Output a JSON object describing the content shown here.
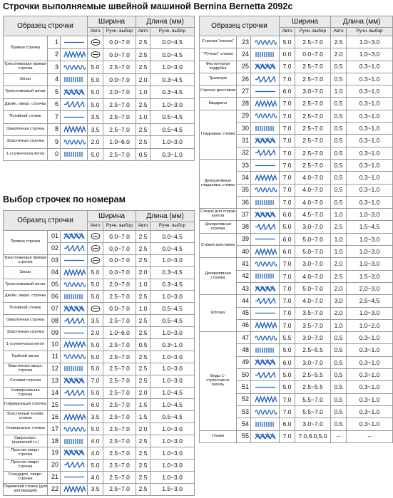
{
  "title": "Строчки выполняемые швейной машиной Bernina Bernetta 2092c",
  "section_title": "Выбор строчек по номерам",
  "header": {
    "pattern": "Образец строчки",
    "width": "Ширина",
    "length": "Длина (мм)",
    "auto": "Авто",
    "manual": "Ручн. выбор"
  },
  "tables": [
    {
      "groups": [
        {
          "name": "Прямая строчка",
          "rows": [
            {
              "no": "1",
              "width_manual": "0.0~7.0",
              "length_auto": "2.5",
              "length_manual": "0.0~4.5"
            },
            {
              "no": "2",
              "width_manual": "0.0~7.0",
              "length_auto": "2.5",
              "length_manual": "0.0~4.5"
            }
          ]
        },
        {
          "name": "Трехстежковая прямая строчка",
          "rows": [
            {
              "no": "3",
              "width_auto": "5.0",
              "width_manual": "2.5~7.0",
              "length_auto": "2.5",
              "length_manual": "1.0~3.0"
            }
          ]
        },
        {
          "name": "Зигзаг",
          "rows": [
            {
              "no": "4",
              "width_auto": "5.0",
              "width_manual": "0.0~7.0",
              "length_auto": "2.0",
              "length_manual": "0.3~4.5"
            }
          ]
        },
        {
          "name": "Трехстежковый зигзаг",
          "rows": [
            {
              "no": "5",
              "width_auto": "5.0",
              "width_manual": "2.0~7.0",
              "length_auto": "1.0",
              "length_manual": "0.3~4.5"
            }
          ]
        },
        {
          "name": "Двойн. оверл. строчка",
          "rows": [
            {
              "no": "6",
              "width_auto": "5.0",
              "width_manual": "2.5~7.0",
              "length_auto": "2.5",
              "length_manual": "1.0~3.0"
            }
          ]
        },
        {
          "name": "Потайной стежок",
          "rows": [
            {
              "no": "7",
              "width_auto": "3.5",
              "width_manual": "2.5~7.0",
              "length_auto": "1.0",
              "length_manual": "0.5~4.5"
            }
          ]
        },
        {
          "name": "Оверлочная строчка",
          "rows": [
            {
              "no": "8",
              "width_auto": "3.5",
              "width_manual": "2.5~7.0",
              "length_auto": "2.5",
              "length_manual": "0.5~4.5"
            }
          ]
        },
        {
          "name": "Эластичная строчка",
          "rows": [
            {
              "no": "9",
              "width_auto": "2.0",
              "width_manual": "1.0~6.0",
              "length_auto": "2.5",
              "length_manual": "1.0~3.0"
            }
          ]
        },
        {
          "name": "1-ступенчатая петля",
          "rows": [
            {
              "no": "0",
              "width_auto": "5.0",
              "width_manual": "2.5~7.0",
              "length_auto": "0.5",
              "length_manual": "0.3~1.0"
            }
          ]
        }
      ]
    },
    {
      "groups": [
        {
          "name": "Прямая строчка",
          "rows": [
            {
              "no": "01",
              "width_manual": "0.0~7.0",
              "length_auto": "2.5",
              "length_manual": "0.0~4.5"
            },
            {
              "no": "02",
              "width_manual": "0.0~7.0",
              "length_auto": "2.5",
              "length_manual": "0.0~4.5"
            }
          ]
        },
        {
          "name": "Трехстежковая прямая строчка",
          "rows": [
            {
              "no": "03",
              "width_manual": "0.0~7.0",
              "length_auto": "2.5",
              "length_manual": "1.0~3.0"
            }
          ]
        },
        {
          "name": "Зигзаг",
          "rows": [
            {
              "no": "04",
              "width_auto": "5.0",
              "width_manual": "0.0~7.0",
              "length_auto": "2.0",
              "length_manual": "0.3~4.5"
            }
          ]
        },
        {
          "name": "Трехстежковый зигзаг",
          "rows": [
            {
              "no": "05",
              "width_auto": "5.0",
              "width_manual": "2.0~7.0",
              "length_auto": "1.0",
              "length_manual": "0.3~4.5"
            }
          ]
        },
        {
          "name": "Двойн. оверл. строчка",
          "rows": [
            {
              "no": "06",
              "width_auto": "5.0",
              "width_manual": "2.5~7.0",
              "length_auto": "2.5",
              "length_manual": "1.0~3.0"
            }
          ]
        },
        {
          "name": "Потайной стежок",
          "rows": [
            {
              "no": "07",
              "width_manual": "0.0~7.0",
              "length_auto": "1.0",
              "length_manual": "0.5~4.5"
            }
          ]
        },
        {
          "name": "Оверлочная строчка",
          "rows": [
            {
              "no": "08",
              "width_auto": "3.5",
              "width_manual": "2.5~7.0",
              "length_auto": "2.5",
              "length_manual": "0.5~4.5"
            }
          ]
        },
        {
          "name": "Эластичная строчка",
          "rows": [
            {
              "no": "09",
              "width_auto": "2.0",
              "width_manual": "1.0~6.0",
              "length_auto": "2.5",
              "length_manual": "1.0~3.0"
            }
          ]
        },
        {
          "name": "1-ступенчатая петля",
          "rows": [
            {
              "no": "10",
              "width_auto": "5.0",
              "width_manual": "2.5~7.0",
              "length_auto": "0.5",
              "length_manual": "0.3~1.0"
            }
          ]
        },
        {
          "name": "Тройной зигзаг",
          "rows": [
            {
              "no": "11",
              "width_auto": "5.0",
              "width_manual": "2.5~7.0",
              "length_auto": "2.5",
              "length_manual": "1.0~3.0"
            }
          ]
        },
        {
          "name": "Эластичная оверл. строчка",
          "rows": [
            {
              "no": "12",
              "width_auto": "5.0",
              "width_manual": "2.5~7.0",
              "length_auto": "2.5",
              "length_manual": "1.0~3.0"
            }
          ]
        },
        {
          "name": "Сотовая строчка",
          "rows": [
            {
              "no": "13",
              "width_auto": "7.0",
              "width_manual": "2.5~7.0",
              "length_auto": "2.5",
              "length_manual": "1.0~3.0"
            }
          ]
        },
        {
          "name": "Универсальная строчка",
          "rows": [
            {
              "no": "14",
              "width_auto": "5.0",
              "width_manual": "2.5~7.0",
              "length_auto": "2.0",
              "length_manual": "1.0~4.5"
            }
          ]
        },
        {
          "name": "Гофрирующая строчка",
          "rows": [
            {
              "no": "15",
              "width_auto": "6.0",
              "width_manual": "2.5~7.0",
              "length_auto": "1.5",
              "length_manual": "1.0~4.5"
            }
          ]
        },
        {
          "name": "Эластичный потайн. стежок",
          "rows": [
            {
              "no": "16",
              "width_auto": "3.5",
              "width_manual": "2.5~7.0",
              "length_auto": "1.5",
              "length_manual": "0.5~4.5"
            }
          ]
        },
        {
          "name": "Универсальн. стежок",
          "rows": [
            {
              "no": "17",
              "width_auto": "5.0",
              "width_manual": "2.5~7.0",
              "length_auto": "2.0",
              "length_manual": "1.0~3.0"
            }
          ]
        },
        {
          "name": "Сверхэласт. (паризский ст.)",
          "rows": [
            {
              "no": "18",
              "width_auto": "4.0",
              "width_manual": "2.5~7.0",
              "length_auto": "2.5",
              "length_manual": "1.0~3.0"
            }
          ]
        },
        {
          "name": "Простая оверл. строчка",
          "rows": [
            {
              "no": "19",
              "width_auto": "4.0",
              "width_manual": "2.5~7.0",
              "length_auto": "2.5",
              "length_manual": "1.0~3.0"
            }
          ]
        },
        {
          "name": "Простая оверл. строчка",
          "rows": [
            {
              "no": "20",
              "width_auto": "5.0",
              "width_manual": "2.5~7.0",
              "length_auto": "2.5",
              "length_manual": "1.0~3.0"
            }
          ]
        },
        {
          "name": "Стандартн. оверл. строчка",
          "rows": [
            {
              "no": "21",
              "width_auto": "4.0",
              "width_manual": "2.5~7.0",
              "length_auto": "2.5",
              "length_manual": "1.0~3.0"
            }
          ]
        },
        {
          "name": "Парижский стежок (для аппликаций)",
          "rows": [
            {
              "no": "22",
              "width_auto": "3.5",
              "width_manual": "2.5~7.0",
              "length_auto": "2.5",
              "length_manual": "1.5~3.0"
            }
          ]
        }
      ]
    },
    {
      "groups": [
        {
          "name": "Строчка \"елочка\"",
          "rows": [
            {
              "no": "23",
              "width_auto": "5.0",
              "width_manual": "2.5~7.0",
              "length_auto": "2.5",
              "length_manual": "1.0~3.0"
            }
          ]
        },
        {
          "name": "\"Ручная\" стежка",
          "rows": [
            {
              "no": "24",
              "width_auto": "0.0",
              "width_manual": "0.0~7.0",
              "length_auto": "2.0",
              "length_manual": "1.0~3.0"
            }
          ]
        },
        {
          "name": "Фестончатая подрубка",
          "rows": [
            {
              "no": "25",
              "width_auto": "7.0",
              "width_manual": "2.5~7.0",
              "length_auto": "0.5",
              "length_manual": "0.3~1.0"
            }
          ]
        },
        {
          "name": "Трапеция",
          "rows": [
            {
              "no": "26",
              "width_auto": "7.0",
              "width_manual": "2.5~7.0",
              "length_auto": "0.5",
              "length_manual": "0.3~1.0"
            }
          ]
        },
        {
          "name": "Строчка крестиком",
          "rows": [
            {
              "no": "27",
              "width_auto": "6.0",
              "width_manual": "3.0~7.0",
              "length_auto": "1.0",
              "length_manual": "0.3~1.0"
            }
          ]
        },
        {
          "name": "Квадраты",
          "rows": [
            {
              "no": "28",
              "width_auto": "7.0",
              "width_manual": "2.5~7.0",
              "length_auto": "0.5",
              "length_manual": "0.3~1.0"
            }
          ]
        },
        {
          "name": "Гладьевые стежки",
          "rows": [
            {
              "no": "29",
              "width_auto": "7.0",
              "width_manual": "2.5~7.0",
              "length_auto": "0.5",
              "length_manual": "0.3~1.0"
            },
            {
              "no": "30",
              "width_auto": "7.0",
              "width_manual": "2.5~7.0",
              "length_auto": "0.5",
              "length_manual": "0.3~1.0"
            },
            {
              "no": "31",
              "width_auto": "7.0",
              "width_manual": "2.5~7.0",
              "length_auto": "0.5",
              "length_manual": "0.3~1.0"
            },
            {
              "no": "32",
              "width_auto": "7.0",
              "width_manual": "2.5~7.0",
              "length_auto": "0.5",
              "length_manual": "0.3~1.0"
            }
          ]
        },
        {
          "name": "Декоративные гладьевые стежки",
          "rows": [
            {
              "no": "33",
              "width_auto": "7.0",
              "width_manual": "2.5~7.0",
              "length_auto": "0.5",
              "length_manual": "0.3~1.0"
            },
            {
              "no": "34",
              "width_auto": "7.0",
              "width_manual": "4.0~7.0",
              "length_auto": "0.5",
              "length_manual": "0.3~1.0"
            },
            {
              "no": "35",
              "width_auto": "7.0",
              "width_manual": "4.0~7.0",
              "length_auto": "0.5",
              "length_manual": "0.3~1.0"
            },
            {
              "no": "36",
              "width_auto": "7.0",
              "width_manual": "4.0~7.0",
              "length_auto": "0.5",
              "length_manual": "0.3~1.0"
            }
          ]
        },
        {
          "name": "Стежок для стежки кантов",
          "rows": [
            {
              "no": "37",
              "width_auto": "6.0",
              "width_manual": "4.5~7.0",
              "length_auto": "1.0",
              "length_manual": "1.0~3.0"
            }
          ]
        },
        {
          "name": "Декоративная строчка",
          "rows": [
            {
              "no": "38",
              "width_auto": "5.0",
              "width_manual": "3.0~7.0",
              "length_auto": "2.5",
              "length_manual": "1.5~4.5"
            }
          ]
        },
        {
          "name": "Стежок крестиком",
          "rows": [
            {
              "no": "39",
              "width_auto": "6.0",
              "width_manual": "5.0~7.0",
              "length_auto": "1.0",
              "length_manual": "1.0~3.0"
            },
            {
              "no": "40",
              "width_auto": "6.0",
              "width_manual": "5.0~7.0",
              "length_auto": "1.0",
              "length_manual": "1.0~3.0"
            }
          ]
        },
        {
          "name": "Декоративная строчка",
          "rows": [
            {
              "no": "41",
              "width_auto": "7.0",
              "width_manual": "3.0~7.0",
              "length_auto": "2.0",
              "length_manual": "1.0~3.0"
            },
            {
              "no": "42",
              "width_auto": "7.0",
              "width_manual": "4.0~7.0",
              "length_auto": "2.5",
              "length_manual": "1.5~3.0"
            },
            {
              "no": "43",
              "width_auto": "7.0",
              "width_manual": "5.0~7.0",
              "length_auto": "2.0",
              "length_manual": "2.0~3.0"
            }
          ]
        },
        {
          "name": "Штопка",
          "rows": [
            {
              "no": "44",
              "width_auto": "7.0",
              "width_manual": "4.0~7.0",
              "length_auto": "3.0",
              "length_manual": "2.5~4.5"
            },
            {
              "no": "45",
              "width_auto": "7.0",
              "width_manual": "3.5~7.0",
              "length_auto": "2.0",
              "length_manual": "1.0~3.0"
            },
            {
              "no": "46",
              "width_auto": "7.0",
              "width_manual": "3.5~7.0",
              "length_auto": "1.0",
              "length_manual": "1.0~2.0"
            }
          ]
        },
        {
          "name": "Виды 1-ступенчатых петель",
          "rows": [
            {
              "no": "47",
              "width_auto": "5.5",
              "width_manual": "3.0~7.0",
              "length_auto": "0.5",
              "length_manual": "0.3~1.0"
            },
            {
              "no": "48",
              "width_auto": "5.0",
              "width_manual": "2.5~5.5",
              "length_auto": "0.5",
              "length_manual": "0.3~1.0"
            },
            {
              "no": "49",
              "width_auto": "6.0",
              "width_manual": "3.0~7.0",
              "length_auto": "0.5",
              "length_manual": "0.3~1.0"
            },
            {
              "no": "50",
              "width_auto": "5.0",
              "width_manual": "2.5~5.5",
              "length_auto": "0.5",
              "length_manual": "0.3~1.0"
            },
            {
              "no": "51",
              "width_auto": "5.0",
              "width_manual": "2.5~5.5",
              "length_auto": "0.5",
              "length_manual": "0.3~1.0"
            },
            {
              "no": "52",
              "width_auto": "7.0",
              "width_manual": "5.5~7.0",
              "length_auto": "0.5",
              "length_manual": "0.3~1.0"
            },
            {
              "no": "53",
              "width_auto": "7.0",
              "width_manual": "5.5~7.0",
              "length_auto": "0.5",
              "length_manual": "0.3~1.0"
            },
            {
              "no": "54",
              "width_auto": "6.0",
              "width_manual": "3.0~7.0",
              "length_auto": "0.5",
              "length_manual": "0.3~1.0"
            }
          ]
        },
        {
          "name": "Глазки",
          "rows": [
            {
              "no": "55",
              "width_auto": "7.0",
              "width_manual": "7.0,6.0,5.0",
              "length_auto": "--",
              "length_manual": "–"
            }
          ]
        }
      ]
    }
  ]
}
